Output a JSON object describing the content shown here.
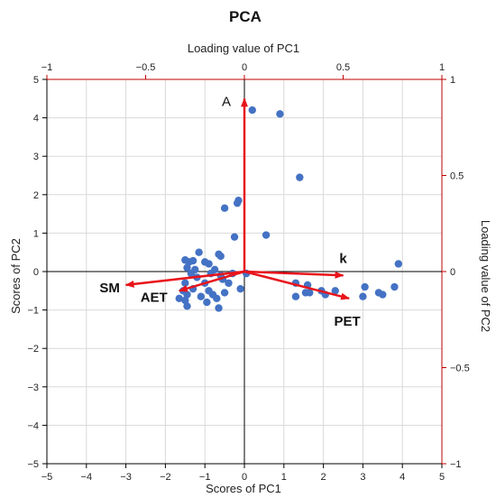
{
  "chart_data": {
    "type": "scatter",
    "title": "PCA",
    "xlabel": "Scores of PC1",
    "ylabel": "Scores of PC2",
    "x2label": "Loading value of PC1",
    "y2label": "Loading value of PC2",
    "xlim": [
      -5,
      5
    ],
    "ylim": [
      -5,
      5
    ],
    "x2lim": [
      -1,
      1
    ],
    "y2lim": [
      -1,
      1
    ],
    "x_ticks": [
      -5,
      -4,
      -3,
      -2,
      -1,
      0,
      1,
      2,
      3,
      4,
      5
    ],
    "y_ticks": [
      -5,
      -4,
      -3,
      -2,
      -1,
      0,
      1,
      2,
      3,
      4,
      5
    ],
    "x2_ticks": [
      -1,
      -0.5,
      0,
      0.5,
      1
    ],
    "y2_ticks": [
      -1,
      -0.5,
      0,
      0.5,
      1
    ],
    "x_tick_labels": [
      "−5",
      "−4",
      "−3",
      "−2",
      "−1",
      "0",
      "1",
      "2",
      "3",
      "4",
      "5"
    ],
    "y_tick_labels": [
      "−5",
      "−4",
      "−3",
      "−2",
      "−1",
      "0",
      "1",
      "2",
      "3",
      "4",
      "5"
    ],
    "x2_tick_labels": [
      "−1",
      "−0.5",
      "0",
      "0.5",
      "1"
    ],
    "y2_tick_labels": [
      "−1",
      "−0.5",
      "0",
      "0.5",
      "1"
    ],
    "grid": true,
    "colors": {
      "points": "#4472C4",
      "loadings": "#E8141B",
      "secondary_axes": "#C00000",
      "grid": "#D9D9D9"
    },
    "points": [
      {
        "x": 0.2,
        "y": 4.2
      },
      {
        "x": 0.9,
        "y": 4.1
      },
      {
        "x": 1.4,
        "y": 2.45
      },
      {
        "x": -0.15,
        "y": 1.85
      },
      {
        "x": -0.18,
        "y": 1.78
      },
      {
        "x": -0.5,
        "y": 1.65
      },
      {
        "x": 0.55,
        "y": 0.95
      },
      {
        "x": -0.25,
        "y": 0.9
      },
      {
        "x": 3.9,
        "y": 0.2
      },
      {
        "x": -1.15,
        "y": 0.5
      },
      {
        "x": -0.65,
        "y": 0.45
      },
      {
        "x": -0.6,
        "y": 0.4
      },
      {
        "x": -1.5,
        "y": 0.3
      },
      {
        "x": -1.4,
        "y": 0.25
      },
      {
        "x": -1.3,
        "y": 0.28
      },
      {
        "x": -0.9,
        "y": 0.2
      },
      {
        "x": -1.0,
        "y": 0.25
      },
      {
        "x": -1.45,
        "y": 0.1
      },
      {
        "x": -1.25,
        "y": 0.05
      },
      {
        "x": -0.75,
        "y": 0.05
      },
      {
        "x": -1.35,
        "y": -0.05
      },
      {
        "x": -0.85,
        "y": -0.05
      },
      {
        "x": -0.3,
        "y": -0.05
      },
      {
        "x": 0.05,
        "y": -0.05
      },
      {
        "x": -1.2,
        "y": -0.15
      },
      {
        "x": -0.6,
        "y": -0.1
      },
      {
        "x": -0.55,
        "y": -0.2
      },
      {
        "x": -1.5,
        "y": -0.3
      },
      {
        "x": -1.0,
        "y": -0.3
      },
      {
        "x": -0.4,
        "y": -0.3
      },
      {
        "x": -0.1,
        "y": -0.45
      },
      {
        "x": -1.3,
        "y": -0.45
      },
      {
        "x": -1.55,
        "y": -0.5
      },
      {
        "x": -0.9,
        "y": -0.5
      },
      {
        "x": -0.5,
        "y": -0.55
      },
      {
        "x": -0.8,
        "y": -0.6
      },
      {
        "x": -1.1,
        "y": -0.65
      },
      {
        "x": -1.45,
        "y": -0.6
      },
      {
        "x": -1.65,
        "y": -0.7
      },
      {
        "x": -1.5,
        "y": -0.75
      },
      {
        "x": -0.7,
        "y": -0.7
      },
      {
        "x": -0.95,
        "y": -0.8
      },
      {
        "x": -1.45,
        "y": -0.9
      },
      {
        "x": -0.65,
        "y": -0.95
      },
      {
        "x": 1.3,
        "y": -0.3
      },
      {
        "x": 1.6,
        "y": -0.35
      },
      {
        "x": 1.3,
        "y": -0.65
      },
      {
        "x": 1.55,
        "y": -0.55
      },
      {
        "x": 1.65,
        "y": -0.55
      },
      {
        "x": 1.95,
        "y": -0.5
      },
      {
        "x": 2.05,
        "y": -0.6
      },
      {
        "x": 2.3,
        "y": -0.5
      },
      {
        "x": 3.05,
        "y": -0.4
      },
      {
        "x": 3.0,
        "y": -0.65
      },
      {
        "x": 3.4,
        "y": -0.55
      },
      {
        "x": 3.5,
        "y": -0.6
      },
      {
        "x": 3.8,
        "y": -0.4
      }
    ],
    "loadings": [
      {
        "name": "A",
        "x": 0.0,
        "y": 0.9,
        "label_style": "plain"
      },
      {
        "name": "k",
        "x": 0.5,
        "y": -0.02,
        "label_style": "bold"
      },
      {
        "name": "PET",
        "x": 0.53,
        "y": -0.14,
        "label_style": "bold"
      },
      {
        "name": "SM",
        "x": -0.6,
        "y": -0.07,
        "label_style": "bold"
      },
      {
        "name": "AET",
        "x": -0.33,
        "y": -0.1,
        "label_style": "bold"
      }
    ]
  }
}
